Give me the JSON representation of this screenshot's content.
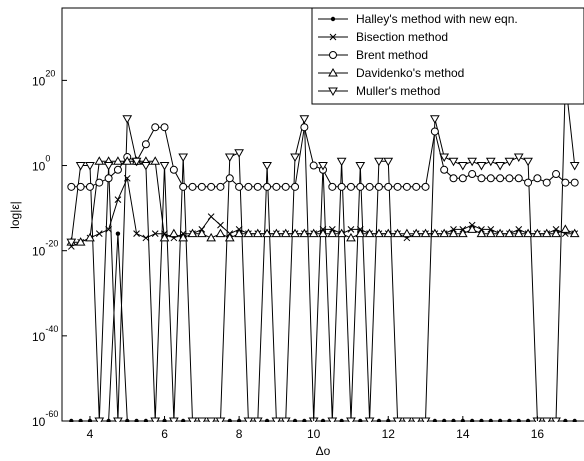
{
  "chart_data": {
    "type": "line",
    "x_label": "Δo",
    "y_label": "log|ε|",
    "log_y": true,
    "legend": "top-right",
    "xlim": [
      3.25,
      17.25
    ],
    "xticks": [
      4,
      6,
      8,
      10,
      12,
      14,
      16
    ],
    "ylim": [
      1e-60,
      1e+37
    ],
    "yticks": [
      {
        "value": 1e-60,
        "label": "10",
        "sup": "-60"
      },
      {
        "value": 1e-40,
        "label": "10",
        "sup": "-40"
      },
      {
        "value": 1e-20,
        "label": "10",
        "sup": "-20"
      },
      {
        "value": 1,
        "label": "10",
        "sup": "0"
      },
      {
        "value": 1e+20,
        "label": "10",
        "sup": "20"
      }
    ],
    "x": [
      3.5,
      3.75,
      4,
      4.25,
      4.5,
      4.75,
      5,
      5.25,
      5.5,
      5.75,
      6,
      6.25,
      6.5,
      6.75,
      7,
      7.25,
      7.5,
      7.75,
      8,
      8.25,
      8.5,
      8.75,
      9,
      9.25,
      9.5,
      9.75,
      10,
      10.25,
      10.5,
      10.75,
      11,
      11.25,
      11.5,
      11.75,
      12,
      12.25,
      12.5,
      12.75,
      13,
      13.25,
      13.5,
      13.75,
      14,
      14.25,
      14.5,
      14.75,
      15,
      15.25,
      15.5,
      15.75,
      16,
      16.25,
      16.5,
      16.75,
      17
    ],
    "series": [
      {
        "name": "Halley's method with new eqn.",
        "color": "#000000",
        "marker": "dot",
        "values": [
          1e-60,
          1e-60,
          1e-60,
          1e-60,
          1e-60,
          1e-16,
          1e-60,
          1e-60,
          1e-60,
          1e-60,
          1e-60,
          1e-60,
          1e-60,
          1e-60,
          1e-60,
          1e-60,
          1e-60,
          1e-60,
          1e-60,
          1e-60,
          1e-60,
          1e-60,
          1e-60,
          1e-60,
          1e-60,
          1e-60,
          1e-60,
          1e-60,
          1e-60,
          1e-60,
          1e-60,
          1e-60,
          1e-60,
          1e-60,
          1e-60,
          1e-60,
          1e-60,
          1e-60,
          1e-60,
          1e-60,
          1e-60,
          1e-60,
          1e-60,
          1e-60,
          1e-60,
          1e-60,
          1e-60,
          1e-60,
          1e-60,
          1e-60,
          1e-60,
          1e-60,
          1e-60,
          1e-60,
          1e-60
        ]
      },
      {
        "name": "Bisection method",
        "color": "#000000",
        "marker": "x",
        "values": [
          1e-19,
          1e-18,
          1e-17,
          1e-16,
          1e-15,
          1e-08,
          0.001,
          1e-16,
          1e-17,
          1e-16,
          1e-16,
          1e-17,
          1e-16,
          1e-16,
          1e-15,
          1e-12,
          1e-14,
          1e-16,
          1e-15,
          1e-16,
          1e-16,
          1e-16,
          1e-16,
          1e-16,
          1e-16,
          1e-16,
          1e-16,
          1e-15,
          1e-15,
          1e-16,
          1e-15,
          1e-15,
          1e-16,
          1e-16,
          1e-16,
          1e-16,
          1e-17,
          1e-16,
          1e-16,
          1e-16,
          1e-16,
          1e-15,
          1e-15,
          1e-14,
          1e-15,
          1e-15,
          1e-16,
          1e-16,
          1e-15,
          1e-16,
          1e-16,
          1e-16,
          1e-15,
          1e-16,
          1e-16
        ]
      },
      {
        "name": "Brent method",
        "color": "#000000",
        "marker": "circle",
        "values": [
          1e-05,
          1e-05,
          1e-05,
          0.0001,
          0.001,
          0.1,
          100.0,
          10.0,
          100000.0,
          1000000000.0,
          1000000000.0,
          0.1,
          1e-05,
          1e-05,
          1e-05,
          1e-05,
          1e-05,
          0.001,
          1e-05,
          1e-05,
          1e-05,
          1e-05,
          1e-05,
          1e-05,
          1e-05,
          1000000000.0,
          1,
          0.1,
          1e-05,
          1e-05,
          1e-05,
          1e-05,
          1e-05,
          1e-05,
          1e-05,
          1e-05,
          1e-05,
          1e-05,
          1e-05,
          100000000.0,
          0.1,
          0.001,
          0.001,
          0.01,
          0.001,
          0.001,
          0.001,
          0.001,
          0.001,
          0.0001,
          0.001,
          0.0001,
          0.01,
          0.0001,
          0.0001
        ]
      },
      {
        "name": "Davidenko's method",
        "color": "#000000",
        "marker": "tri-up",
        "values": [
          1e-18,
          1e-18,
          1e-17,
          10.0,
          10.0,
          10.0,
          10.0,
          10.0,
          10.0,
          10.0,
          1e-17,
          1e-16,
          1e-17,
          1e-16,
          1e-16,
          1e-17,
          1e-16,
          1e-17,
          1e-16,
          1e-16,
          1e-16,
          1e-16,
          1e-16,
          1e-16,
          1e-16,
          1e-16,
          1e-16,
          1e-16,
          1e-16,
          1e-16,
          1e-17,
          1e-16,
          1e-16,
          1e-16,
          1e-16,
          1e-16,
          1e-16,
          1e-16,
          1e-16,
          1e-16,
          1e-16,
          1e-16,
          1e-16,
          1e-15,
          1e-16,
          1e-16,
          1e-16,
          1e-16,
          1e-16,
          1e-16,
          1e-16,
          1e-16,
          1e-16,
          1e-15,
          1e-16
        ]
      },
      {
        "name": "Muller's method",
        "color": "#000000",
        "marker": "tri-down",
        "values": [
          1e-18,
          1,
          1,
          1e-60,
          1,
          1e-60,
          100000000000.0,
          10.0,
          1,
          1e-60,
          1,
          1e-60,
          100.0,
          1e-60,
          1e-60,
          1e-60,
          1e-60,
          100.0,
          1000.0,
          1e-60,
          1e-60,
          1,
          1e-60,
          1e-60,
          100.0,
          100000000000.0,
          1e-60,
          1,
          1e-60,
          10.0,
          1e-60,
          1,
          1e-60,
          10.0,
          10.0,
          1e-60,
          1e-60,
          1e-60,
          1e-60,
          100000000000.0,
          100.0,
          10.0,
          1,
          10.0,
          1,
          10.0,
          1,
          10.0,
          100.0,
          10.0,
          1e-60,
          1e-60,
          1e-60,
          1e+20,
          1
        ]
      }
    ]
  }
}
